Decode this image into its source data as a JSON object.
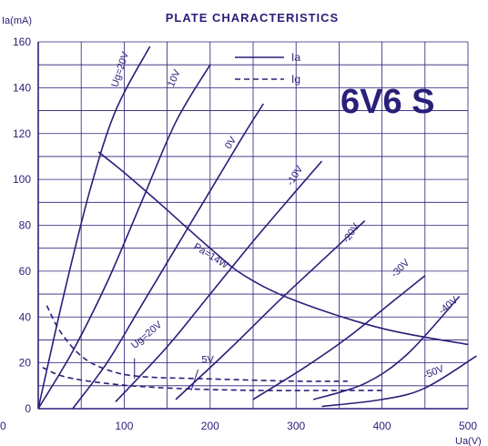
{
  "chart_data": {
    "type": "line",
    "title": "PLATE CHARACTERISTICS",
    "tube_label": "6V6 S",
    "xlabel": "Ua(V)",
    "ylabel": "Ia(mA)",
    "xlim": [
      0,
      500
    ],
    "ylim": [
      0,
      160
    ],
    "x_ticks": [
      "0",
      "100",
      "200",
      "300",
      "400",
      "500"
    ],
    "y_ticks": [
      "0",
      "20",
      "40",
      "60",
      "80",
      "100",
      "120",
      "140",
      "160"
    ],
    "origin_label": "0",
    "grid": true,
    "legend": {
      "position": "top-right",
      "entries": [
        {
          "label": "Ia",
          "style": "solid"
        },
        {
          "label": "Ig",
          "style": "dashed"
        }
      ]
    },
    "color": "#2a1f7a",
    "series": [
      {
        "name": "Ug=20V",
        "quantity": "Ia",
        "x": [
          0,
          30,
          60,
          90,
          130
        ],
        "y": [
          0,
          50,
          95,
          130,
          158
        ]
      },
      {
        "name": "10V",
        "quantity": "Ia",
        "x": [
          0,
          40,
          80,
          120,
          160,
          200
        ],
        "y": [
          0,
          25,
          55,
          90,
          125,
          150
        ]
      },
      {
        "name": "0V",
        "quantity": "Ia",
        "x": [
          40,
          80,
          120,
          160,
          200,
          240,
          262
        ],
        "y": [
          0,
          20,
          45,
          70,
          95,
          120,
          133
        ]
      },
      {
        "name": "-10V",
        "quantity": "Ia",
        "x": [
          90,
          150,
          200,
          250,
          300,
          330
        ],
        "y": [
          3,
          27,
          50,
          73,
          95,
          108
        ]
      },
      {
        "name": "-20V",
        "quantity": "Ia",
        "x": [
          160,
          220,
          280,
          340,
          380
        ],
        "y": [
          4,
          25,
          47,
          68,
          82
        ]
      },
      {
        "name": "-30V",
        "quantity": "Ia",
        "x": [
          250,
          310,
          360,
          410,
          450
        ],
        "y": [
          4,
          18,
          31,
          46,
          58
        ]
      },
      {
        "name": "-40V",
        "quantity": "Ia",
        "x": [
          320,
          380,
          430,
          490
        ],
        "y": [
          4,
          11,
          24,
          49
        ]
      },
      {
        "name": "-50V",
        "quantity": "Ia",
        "x": [
          330,
          400,
          450,
          510
        ],
        "y": [
          1,
          4,
          9,
          23
        ]
      },
      {
        "name": "Pa=14W",
        "quantity": "Pa",
        "x": [
          70,
          100,
          140,
          200,
          240,
          300,
          400,
          500
        ],
        "y": [
          112,
          103,
          90,
          70,
          58,
          47,
          35,
          28
        ]
      },
      {
        "name": "Ug=20V",
        "quantity": "Ig",
        "x": [
          10,
          25,
          50,
          80,
          120,
          200,
          300,
          360
        ],
        "y": [
          45,
          34,
          23,
          17,
          14,
          13,
          12,
          12
        ]
      },
      {
        "name": "5V",
        "quantity": "Ig",
        "x": [
          5,
          30,
          80,
          150,
          250,
          350,
          400
        ],
        "y": [
          18,
          14,
          11,
          9,
          8,
          8,
          8
        ]
      }
    ],
    "curve_labels": [
      "Ug=20V",
      "10V",
      "0V",
      "-10V",
      "-20V",
      "-30V",
      "-40V",
      "-50V",
      "Pa=14W",
      "Ug=20V",
      "5V"
    ]
  }
}
